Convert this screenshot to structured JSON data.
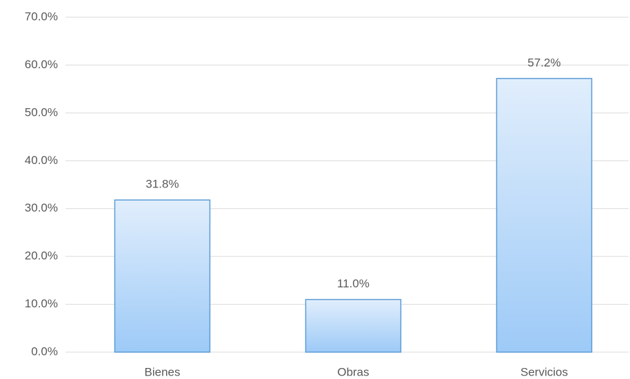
{
  "chart_data": {
    "type": "bar",
    "categories": [
      "Bienes",
      "Obras",
      "Servicios"
    ],
    "values": [
      31.8,
      11.0,
      57.2
    ],
    "value_labels": [
      "31.8%",
      "11.0%",
      "57.2%"
    ],
    "color": "#5b9bd5",
    "ylim": [
      0,
      70
    ],
    "yticks": [
      {
        "value": 0,
        "label": "0.0%"
      },
      {
        "value": 10,
        "label": "10.0%"
      },
      {
        "value": 20,
        "label": "20.0%"
      },
      {
        "value": 30,
        "label": "30.0%"
      },
      {
        "value": 40,
        "label": "40.0%"
      },
      {
        "value": 50,
        "label": "50.0%"
      },
      {
        "value": 60,
        "label": "60.0%"
      },
      {
        "value": 70,
        "label": "70.0%"
      }
    ],
    "grid": true
  }
}
